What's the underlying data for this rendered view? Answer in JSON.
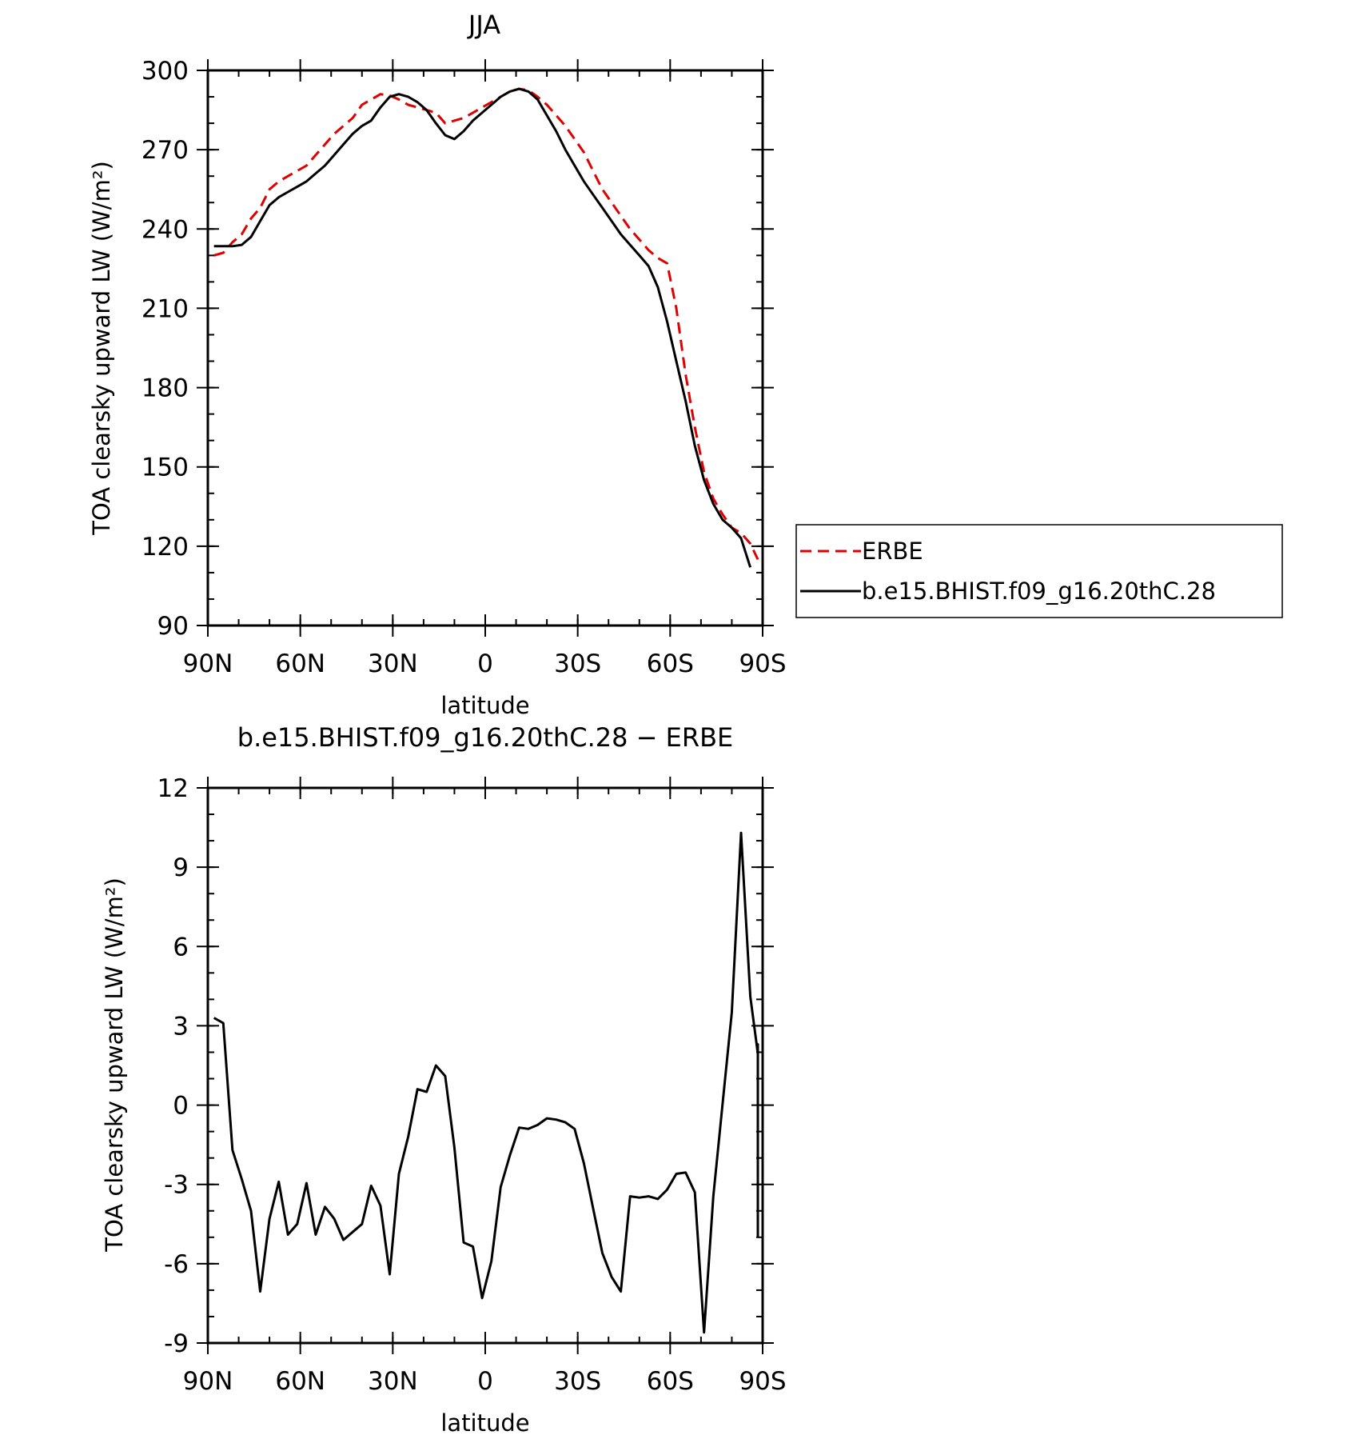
{
  "chart_data": [
    {
      "type": "line",
      "title": "JJA",
      "xlabel": "latitude",
      "ylabel": "TOA clearsky upward LW (W/m²)",
      "xlim": [
        -90,
        90
      ],
      "ylim": [
        90,
        300
      ],
      "yticks": [
        90,
        120,
        150,
        180,
        210,
        240,
        270,
        300
      ],
      "xtick_values": [
        -90,
        -60,
        -30,
        0,
        30,
        60,
        90
      ],
      "xtick_labels": [
        "90N",
        "60N",
        "30N",
        "0",
        "30S",
        "60S",
        "90S"
      ],
      "legend_position": "right",
      "series": [
        {
          "name": "ERBE",
          "color": "#e00000",
          "dash": "dashed",
          "points": [
            [
              -88,
              230
            ],
            [
              -85,
              231
            ],
            [
              -82,
              235
            ],
            [
              -79,
              238
            ],
            [
              -76,
              244
            ],
            [
              -73,
              248
            ],
            [
              -70,
              255
            ],
            [
              -67,
              258
            ],
            [
              -64,
              260
            ],
            [
              -61,
              262
            ],
            [
              -58,
              264
            ],
            [
              -55,
              268
            ],
            [
              -52,
              272
            ],
            [
              -49,
              276
            ],
            [
              -46,
              279
            ],
            [
              -43,
              282
            ],
            [
              -40,
              287
            ],
            [
              -37,
              289
            ],
            [
              -34,
              291
            ],
            [
              -31,
              290.5
            ],
            [
              -28,
              289
            ],
            [
              -25,
              287
            ],
            [
              -22,
              286
            ],
            [
              -19,
              285
            ],
            [
              -16,
              284
            ],
            [
              -13,
              280
            ],
            [
              -10,
              281
            ],
            [
              -7,
              282
            ],
            [
              -4,
              284
            ],
            [
              -1,
              286
            ],
            [
              2,
              288
            ],
            [
              5,
              290
            ],
            [
              8,
              292
            ],
            [
              11,
              293
            ],
            [
              14,
              292.5
            ],
            [
              17,
              290
            ],
            [
              20,
              287
            ],
            [
              23,
              283
            ],
            [
              26,
              279
            ],
            [
              29,
              274
            ],
            [
              32,
              269
            ],
            [
              35,
              262
            ],
            [
              38,
              255
            ],
            [
              41,
              250
            ],
            [
              44,
              245
            ],
            [
              47,
              240
            ],
            [
              50,
              236
            ],
            [
              53,
              232
            ],
            [
              56,
              229
            ],
            [
              59,
              227
            ],
            [
              62,
              210
            ],
            [
              65,
              185
            ],
            [
              68,
              165
            ],
            [
              71,
              148
            ],
            [
              74,
              138
            ],
            [
              77,
              132
            ],
            [
              80,
              127
            ],
            [
              83,
              125
            ],
            [
              86,
              121
            ],
            [
              89,
              115
            ]
          ]
        },
        {
          "name": "b.e15.BHIST.f09_g16.20thC.28",
          "color": "#000000",
          "dash": "solid",
          "points": [
            [
              -88,
              233.5
            ],
            [
              -85,
              233.5
            ],
            [
              -82,
              233.5
            ],
            [
              -79,
              234
            ],
            [
              -76,
              237
            ],
            [
              -73,
              243
            ],
            [
              -70,
              249
            ],
            [
              -67,
              252
            ],
            [
              -64,
              254
            ],
            [
              -61,
              256
            ],
            [
              -58,
              258
            ],
            [
              -55,
              261
            ],
            [
              -52,
              264
            ],
            [
              -49,
              268
            ],
            [
              -46,
              272
            ],
            [
              -43,
              276
            ],
            [
              -40,
              279
            ],
            [
              -37,
              281
            ],
            [
              -34,
              286
            ],
            [
              -31,
              290
            ],
            [
              -28,
              291
            ],
            [
              -25,
              290
            ],
            [
              -22,
              288
            ],
            [
              -19,
              285
            ],
            [
              -16,
              280
            ],
            [
              -13,
              275.5
            ],
            [
              -10,
              274
            ],
            [
              -7,
              277
            ],
            [
              -4,
              281
            ],
            [
              -1,
              284
            ],
            [
              2,
              287
            ],
            [
              5,
              290
            ],
            [
              8,
              292
            ],
            [
              11,
              293
            ],
            [
              14,
              292
            ],
            [
              17,
              289
            ],
            [
              20,
              283
            ],
            [
              23,
              277
            ],
            [
              26,
              270
            ],
            [
              29,
              264
            ],
            [
              32,
              258
            ],
            [
              35,
              253
            ],
            [
              38,
              248
            ],
            [
              41,
              243
            ],
            [
              44,
              238
            ],
            [
              47,
              234
            ],
            [
              50,
              230
            ],
            [
              53,
              226
            ],
            [
              56,
              218
            ],
            [
              59,
              205
            ],
            [
              62,
              190
            ],
            [
              65,
              175
            ],
            [
              68,
              158
            ],
            [
              71,
              145
            ],
            [
              74,
              136
            ],
            [
              77,
              130
            ],
            [
              80,
              127
            ],
            [
              83,
              123
            ],
            [
              86,
              112
            ]
          ]
        }
      ]
    },
    {
      "type": "line",
      "title": "b.e15.BHIST.f09_g16.20thC.28 − ERBE",
      "xlabel": "latitude",
      "ylabel": "TOA clearsky upward LW (W/m²)",
      "xlim": [
        -90,
        90
      ],
      "ylim": [
        -9,
        12
      ],
      "yticks": [
        -9,
        -6,
        -3,
        0,
        3,
        6,
        9,
        12
      ],
      "xtick_values": [
        -90,
        -60,
        -30,
        0,
        30,
        60,
        90
      ],
      "xtick_labels": [
        "90N",
        "60N",
        "30N",
        "0",
        "30S",
        "60S",
        "90S"
      ],
      "series": [
        {
          "color": "#000000",
          "dash": "solid",
          "points": [
            [
              -88,
              3.3
            ],
            [
              -85,
              3.1
            ],
            [
              -82,
              -1.7
            ],
            [
              -79,
              -2.8
            ],
            [
              -76,
              -4
            ],
            [
              -73,
              -7.05
            ],
            [
              -70,
              -4.3
            ],
            [
              -67,
              -2.9
            ],
            [
              -64,
              -4.9
            ],
            [
              -61,
              -4.5
            ],
            [
              -58,
              -2.95
            ],
            [
              -55,
              -4.9
            ],
            [
              -52,
              -3.85
            ],
            [
              -49,
              -4.3
            ],
            [
              -46,
              -5.1
            ],
            [
              -43,
              -4.8
            ],
            [
              -40,
              -4.5
            ],
            [
              -37,
              -3.05
            ],
            [
              -34,
              -3.8
            ],
            [
              -31,
              -6.4
            ],
            [
              -28,
              -2.6
            ],
            [
              -25,
              -1.2
            ],
            [
              -22,
              0.6
            ],
            [
              -19,
              0.5
            ],
            [
              -16,
              1.5
            ],
            [
              -13,
              1.1
            ],
            [
              -10,
              -1.6
            ],
            [
              -7,
              -5.2
            ],
            [
              -4,
              -5.35
            ],
            [
              -1,
              -7.3
            ],
            [
              2,
              -5.9
            ],
            [
              5,
              -3.1
            ],
            [
              8,
              -1.9
            ],
            [
              11,
              -0.85
            ],
            [
              14,
              -0.9
            ],
            [
              17,
              -0.75
            ],
            [
              20,
              -0.5
            ],
            [
              23,
              -0.55
            ],
            [
              26,
              -0.65
            ],
            [
              29,
              -0.9
            ],
            [
              32,
              -2.2
            ],
            [
              35,
              -3.9
            ],
            [
              38,
              -5.6
            ],
            [
              41,
              -6.5
            ],
            [
              44,
              -7.05
            ],
            [
              47,
              -3.45
            ],
            [
              50,
              -3.5
            ],
            [
              53,
              -3.45
            ],
            [
              56,
              -3.55
            ],
            [
              59,
              -3.2
            ],
            [
              62,
              -2.6
            ],
            [
              65,
              -2.55
            ],
            [
              68,
              -3.3
            ],
            [
              71,
              -8.6
            ],
            [
              74,
              -3.45
            ],
            [
              77,
              0.05
            ],
            [
              80,
              3.5
            ],
            [
              83,
              10.3
            ],
            [
              86,
              4.1
            ],
            [
              89,
              1.95
            ],
            [
              92,
              2.0
            ],
            [
              95,
              2.3
            ],
            [
              98,
              2.1
            ],
            [
              101,
              -5.0
            ]
          ]
        }
      ]
    }
  ]
}
